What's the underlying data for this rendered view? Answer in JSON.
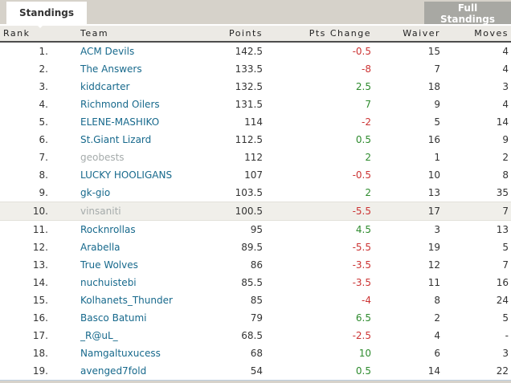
{
  "tabs": {
    "active_label": "Standings"
  },
  "actions": {
    "full_standings_label": "Full Standings"
  },
  "table": {
    "columns": [
      "Rank",
      "Team",
      "Points",
      "Pts Change",
      "Waiver",
      "Moves"
    ],
    "rows": [
      {
        "rank": "1.",
        "team": "ACM Devils",
        "points": "142.5",
        "change": "-0.5",
        "waiver": "15",
        "moves": "4",
        "inactive": false,
        "highlight": false
      },
      {
        "rank": "2.",
        "team": "The Answers",
        "points": "133.5",
        "change": "-8",
        "waiver": "7",
        "moves": "4",
        "inactive": false,
        "highlight": false
      },
      {
        "rank": "3.",
        "team": "kiddcarter",
        "points": "132.5",
        "change": "2.5",
        "waiver": "18",
        "moves": "3",
        "inactive": false,
        "highlight": false
      },
      {
        "rank": "4.",
        "team": "Richmond Oilers",
        "points": "131.5",
        "change": "7",
        "waiver": "9",
        "moves": "4",
        "inactive": false,
        "highlight": false
      },
      {
        "rank": "5.",
        "team": "ELENE-MASHIKO",
        "points": "114",
        "change": "-2",
        "waiver": "5",
        "moves": "14",
        "inactive": false,
        "highlight": false
      },
      {
        "rank": "6.",
        "team": "St.Giant Lizard",
        "points": "112.5",
        "change": "0.5",
        "waiver": "16",
        "moves": "9",
        "inactive": false,
        "highlight": false
      },
      {
        "rank": "7.",
        "team": "geobests",
        "points": "112",
        "change": "2",
        "waiver": "1",
        "moves": "2",
        "inactive": true,
        "highlight": false
      },
      {
        "rank": "8.",
        "team": "LUCKY HOOLIGANS",
        "points": "107",
        "change": "-0.5",
        "waiver": "10",
        "moves": "8",
        "inactive": false,
        "highlight": false
      },
      {
        "rank": "9.",
        "team": "gk-gio",
        "points": "103.5",
        "change": "2",
        "waiver": "13",
        "moves": "35",
        "inactive": false,
        "highlight": false
      },
      {
        "rank": "10.",
        "team": "vinsaniti",
        "points": "100.5",
        "change": "-5.5",
        "waiver": "17",
        "moves": "7",
        "inactive": true,
        "highlight": true
      },
      {
        "rank": "11.",
        "team": "Rocknrollas",
        "points": "95",
        "change": "4.5",
        "waiver": "3",
        "moves": "13",
        "inactive": false,
        "highlight": false
      },
      {
        "rank": "12.",
        "team": "Arabella",
        "points": "89.5",
        "change": "-5.5",
        "waiver": "19",
        "moves": "5",
        "inactive": false,
        "highlight": false
      },
      {
        "rank": "13.",
        "team": "True Wolves",
        "points": "86",
        "change": "-3.5",
        "waiver": "12",
        "moves": "7",
        "inactive": false,
        "highlight": false
      },
      {
        "rank": "14.",
        "team": "nuchuistebi",
        "points": "85.5",
        "change": "-3.5",
        "waiver": "11",
        "moves": "16",
        "inactive": false,
        "highlight": false
      },
      {
        "rank": "15.",
        "team": "Kolhanets_Thunder",
        "points": "85",
        "change": "-4",
        "waiver": "8",
        "moves": "24",
        "inactive": false,
        "highlight": false
      },
      {
        "rank": "16.",
        "team": "Basco Batumi",
        "points": "79",
        "change": "6.5",
        "waiver": "2",
        "moves": "5",
        "inactive": false,
        "highlight": false
      },
      {
        "rank": "17.",
        "team": "_R@uL_",
        "points": "68.5",
        "change": "-2.5",
        "waiver": "4",
        "moves": "-",
        "inactive": false,
        "highlight": false
      },
      {
        "rank": "18.",
        "team": "Namgaltuxucess",
        "points": "68",
        "change": "10",
        "waiver": "6",
        "moves": "3",
        "inactive": false,
        "highlight": false
      },
      {
        "rank": "19.",
        "team": "avenged7fold",
        "points": "54",
        "change": "0.5",
        "waiver": "14",
        "moves": "22",
        "inactive": false,
        "highlight": false
      }
    ]
  },
  "colors": {
    "team_link": "#17698c",
    "inactive_team": "#a5abab",
    "positive_change": "#2e8b2e",
    "negative_change": "#cc3333",
    "button_bg": "#a8a8a3",
    "header_bg": "#eceae5",
    "highlight_row_bg": "#f0efea",
    "page_bg": "#d6d2ca"
  }
}
